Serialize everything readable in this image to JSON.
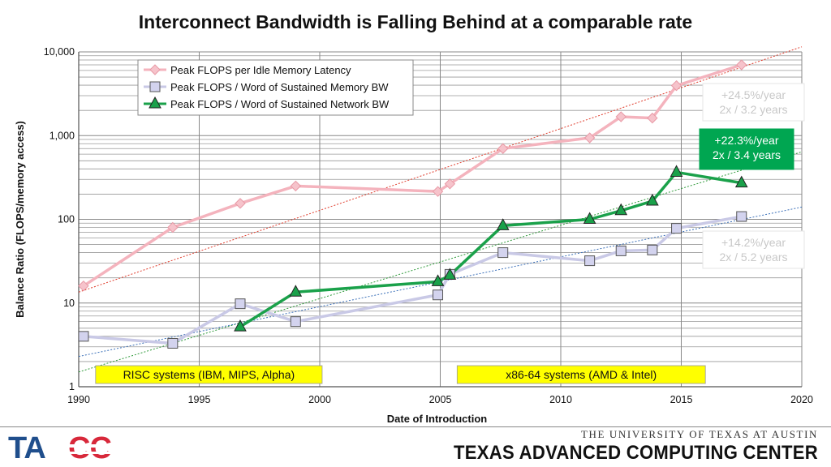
{
  "page": {
    "title": "Interconnect Bandwidth is Falling Behind at a comparable rate",
    "footer": {
      "university": "THE UNIVERSITY OF TEXAS AT AUSTIN",
      "center": "TEXAS ADVANCED COMPUTING CENTER",
      "logo": "TACC"
    }
  },
  "chart_data": {
    "type": "line",
    "title": "Interconnect Bandwidth is Falling Behind at a comparable rate",
    "xlabel": "Date of Introduction",
    "ylabel": "Balance Ratio (FLOPS/memory access)",
    "xlim": [
      1990,
      2020
    ],
    "ylim": [
      1,
      10000
    ],
    "yscale": "log",
    "x_ticks": [
      "1990",
      "1995",
      "2000",
      "2005",
      "2010",
      "2015",
      "2020"
    ],
    "y_ticks": [
      "1",
      "10",
      "100",
      "1,000",
      "10,000"
    ],
    "grid": true,
    "legend_position": "top-left",
    "series": [
      {
        "name": "Peak FLOPS per Idle Memory Latency",
        "color": "#f4b3bd",
        "marker": "diamond",
        "points": [
          [
            1990.2,
            16
          ],
          [
            1993.9,
            80
          ],
          [
            1996.7,
            155
          ],
          [
            1999.0,
            250
          ],
          [
            2004.9,
            215
          ],
          [
            2005.4,
            265
          ],
          [
            2007.6,
            700
          ],
          [
            2011.2,
            940
          ],
          [
            2012.5,
            1680
          ],
          [
            2013.8,
            1620
          ],
          [
            2014.8,
            3950
          ],
          [
            2017.5,
            7000
          ]
        ]
      },
      {
        "name": "Peak FLOPS / Word of Sustained Memory BW",
        "color": "#c9c9e6",
        "marker": "square",
        "points": [
          [
            1990.2,
            4
          ],
          [
            1993.9,
            3.3
          ],
          [
            1996.7,
            9.8
          ],
          [
            1999.0,
            6
          ],
          [
            2004.9,
            12.5
          ],
          [
            2005.4,
            22
          ],
          [
            2007.6,
            40
          ],
          [
            2011.2,
            32
          ],
          [
            2012.5,
            42
          ],
          [
            2013.8,
            43
          ],
          [
            2014.8,
            78
          ],
          [
            2017.5,
            108
          ]
        ]
      },
      {
        "name": "Peak FLOPS / Word of Sustained Network BW",
        "color": "#1aa14a",
        "marker": "triangle",
        "points": [
          [
            1996.7,
            5.2
          ],
          [
            1999.0,
            13.5
          ],
          [
            2004.9,
            18
          ],
          [
            2005.4,
            21.5
          ],
          [
            2007.6,
            84
          ],
          [
            2011.2,
            100
          ],
          [
            2012.5,
            127
          ],
          [
            2013.8,
            165
          ],
          [
            2014.8,
            365
          ],
          [
            2017.5,
            272
          ]
        ]
      }
    ],
    "trendlines": [
      {
        "series": "Peak FLOPS per Idle Memory Latency",
        "color": "#e03c2c",
        "points": [
          [
            1990,
            13.5
          ],
          [
            2020,
            11500
          ]
        ]
      },
      {
        "series": "Peak FLOPS / Word of Sustained Network BW",
        "color": "#2f9a3a",
        "points": [
          [
            1990,
            1.5
          ],
          [
            2020,
            640
          ]
        ]
      },
      {
        "series": "Peak FLOPS / Word of Sustained Memory BW",
        "color": "#3a6fb8",
        "points": [
          [
            1990,
            2.3
          ],
          [
            2020,
            140
          ]
        ]
      }
    ],
    "annotations": [
      {
        "id": "red",
        "lines": [
          "+24.5%/year",
          "2x / 3.2 years"
        ],
        "bg": "#ffffff",
        "fg": "#c8c8c8"
      },
      {
        "id": "green",
        "lines": [
          "+22.3%/year",
          "2x / 3.4 years"
        ],
        "bg": "#00a651",
        "fg": "#ffffff"
      },
      {
        "id": "blue",
        "lines": [
          "+14.2%/year",
          "2x / 5.2 years"
        ],
        "bg": "#ffffff",
        "fg": "#c8c8c8"
      }
    ],
    "eras": [
      {
        "label": "RISC systems (IBM, MIPS, Alpha)",
        "from": 1990.7,
        "to": 2000.1,
        "color": "#ffff00"
      },
      {
        "label": "x86-64 systems (AMD & Intel)",
        "from": 2005.7,
        "to": 2016.0,
        "color": "#ffff00"
      }
    ]
  }
}
